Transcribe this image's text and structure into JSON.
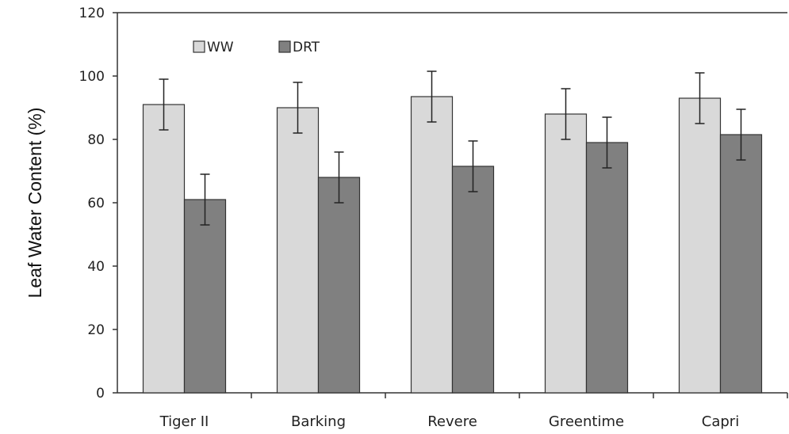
{
  "chart_data": {
    "type": "bar",
    "title": "",
    "xlabel": "",
    "ylabel": "Leaf Water Content (%)",
    "ylim": [
      0,
      120
    ],
    "yticks": [
      0,
      20,
      40,
      60,
      80,
      100,
      120
    ],
    "categories": [
      "Tiger II",
      "Barking",
      "Revere",
      "Greentime",
      "Capri"
    ],
    "series": [
      {
        "name": "WW",
        "color": "#d9d9d9",
        "values": [
          91,
          90,
          93.5,
          88,
          93
        ],
        "error": [
          8,
          8,
          8,
          8,
          8
        ]
      },
      {
        "name": "DRT",
        "color": "#808080",
        "values": [
          61,
          68,
          71.5,
          79,
          81.5
        ],
        "error": [
          8,
          8,
          8,
          8,
          8
        ]
      }
    ],
    "grid": false,
    "legend": "top-left"
  }
}
